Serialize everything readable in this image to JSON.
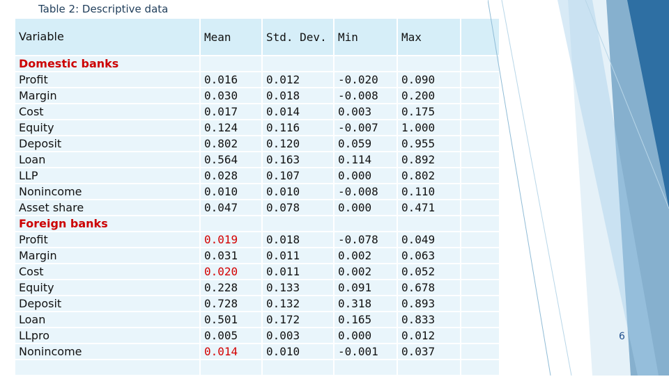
{
  "caption": "Table 2: Descriptive data",
  "page_number": "6",
  "colors": {
    "header_bg": "#d6eef8",
    "row_bg": "#e9f5fb",
    "group_label": "#cc0000",
    "highlight": "#d40000",
    "accent": "#2e6fa3"
  },
  "table": {
    "headers": {
      "variable": "Variable",
      "mean": "Mean",
      "std": "Std. Dev.",
      "min": "Min",
      "max": "Max"
    },
    "rows": [
      {
        "label": "Domestic banks",
        "group": true,
        "mean": "",
        "std": "",
        "min": "",
        "max": ""
      },
      {
        "label": "Profit",
        "mean": "0.016",
        "std": "0.012",
        "min": "-0.020",
        "max": "0.090"
      },
      {
        "label": "Margin",
        "mean": "0.030",
        "std": "0.018",
        "min": "-0.008",
        "max": "0.200"
      },
      {
        "label": "Cost",
        "mean": "0.017",
        "std": "0.014",
        "min": "0.003",
        "max": "0.175"
      },
      {
        "label": "Equity",
        "mean": "0.124",
        "std": "0.116",
        "min": "-0.007",
        "max": "1.000"
      },
      {
        "label": "Deposit",
        "mean": "0.802",
        "std": "0.120",
        "min": "0.059",
        "max": "0.955"
      },
      {
        "label": "Loan",
        "mean": "0.564",
        "std": "0.163",
        "min": "0.114",
        "max": "0.892"
      },
      {
        "label": "LLP",
        "mean": "0.028",
        "std": "0.107",
        "min": "0.000",
        "max": "0.802"
      },
      {
        "label": "Nonincome",
        "mean": "0.010",
        "std": "0.010",
        "min": "-0.008",
        "max": "0.110"
      },
      {
        "label": "Asset share",
        "mean": "0.047",
        "std": "0.078",
        "min": "0.000",
        "max": "0.471"
      },
      {
        "label": "Foreign banks",
        "group": true,
        "mean": "",
        "std": "",
        "min": "",
        "max": ""
      },
      {
        "label": "Profit",
        "mean": "0.019",
        "mean_highlight": true,
        "std": "0.018",
        "min": "-0.078",
        "max": "0.049"
      },
      {
        "label": "Margin",
        "mean": "0.031",
        "std": "0.011",
        "min": "0.002",
        "max": "0.063"
      },
      {
        "label": "Cost",
        "mean": "0.020",
        "mean_highlight": true,
        "std": "0.011",
        "min": "0.002",
        "max": "0.052"
      },
      {
        "label": "Equity",
        "mean": "0.228",
        "std": "0.133",
        "min": "0.091",
        "max": "0.678"
      },
      {
        "label": "Deposit",
        "mean": "0.728",
        "std": "0.132",
        "min": "0.318",
        "max": "0.893"
      },
      {
        "label": "Loan",
        "mean": "0.501",
        "std": "0.172",
        "min": "0.165",
        "max": "0.833"
      },
      {
        "label": "LLpro",
        "mean": "0.005",
        "std": "0.003",
        "min": "0.000",
        "max": "0.012"
      },
      {
        "label": "Nonincome",
        "mean": "0.014",
        "mean_highlight": true,
        "std": "0.010",
        "min": "-0.001",
        "max": "0.037"
      },
      {
        "label": "",
        "mean": "",
        "std": "",
        "min": "",
        "max": ""
      }
    ]
  }
}
